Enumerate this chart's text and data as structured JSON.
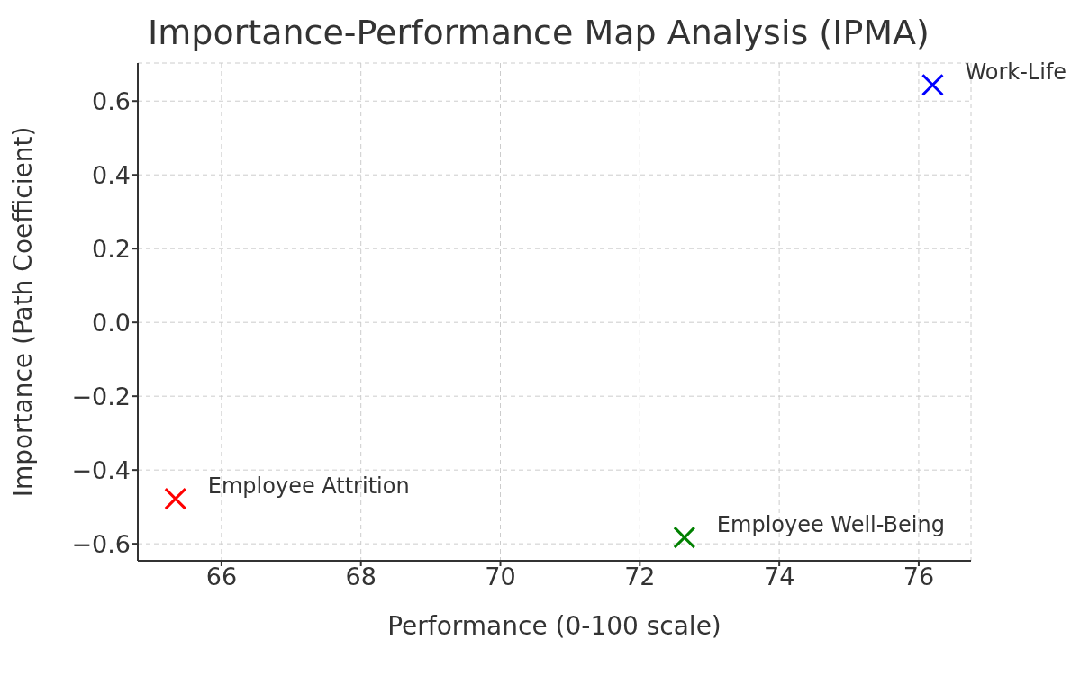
{
  "chart_data": {
    "type": "scatter",
    "title": "Importance-Performance Map Analysis (IPMA)",
    "xlabel": "Performance (0-100 scale)",
    "ylabel": "Importance (Path Coefficient)",
    "series": [
      {
        "name": "Employee Attrition",
        "color": "#ff0000",
        "x": [
          65.34
        ],
        "values": [
          -0.478
        ]
      },
      {
        "name": "Employee Well-Being",
        "color": "#008000",
        "x": [
          72.64
        ],
        "values": [
          -0.583
        ]
      },
      {
        "name": "Work-Life",
        "color": "#0000ff",
        "x": [
          76.2
        ],
        "values": [
          0.644
        ]
      }
    ],
    "xlim": [
      64.8,
      76.75
    ],
    "ylim": [
      -0.646,
      0.703
    ],
    "xticks": [
      66,
      68,
      70,
      72,
      74,
      76
    ],
    "yticks": [
      {
        "value": -0.6,
        "label": "−0.6"
      },
      {
        "value": -0.4,
        "label": "−0.4"
      },
      {
        "value": -0.2,
        "label": "−0.2"
      },
      {
        "value": 0,
        "label": "0.0"
      },
      {
        "value": 0.2,
        "label": "0.2"
      },
      {
        "value": 0.4,
        "label": "0.4"
      },
      {
        "value": 0.6,
        "label": "0.6"
      }
    ],
    "grid": true,
    "marker": "cross"
  }
}
